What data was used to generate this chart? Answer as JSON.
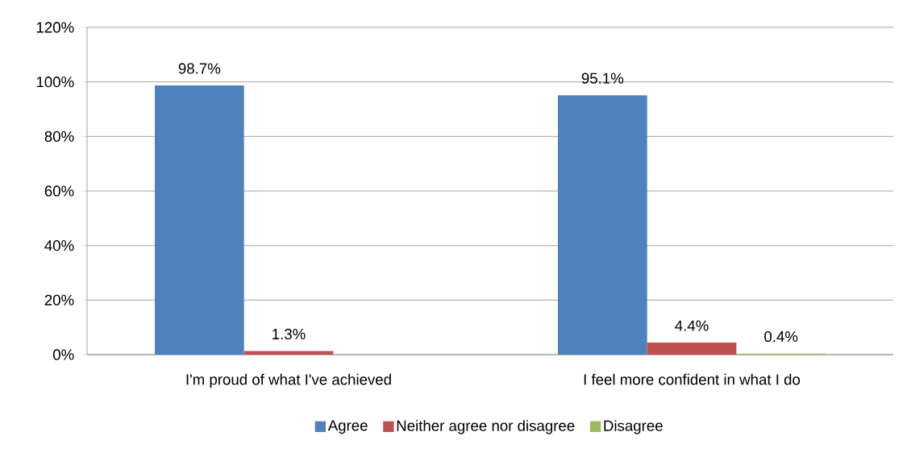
{
  "chart_data": {
    "type": "bar",
    "categories": [
      "I'm proud of what I've achieved",
      "I feel more confident in what I do"
    ],
    "series": [
      {
        "name": "Agree",
        "color": "#4f81bd",
        "values": [
          98.7,
          95.1
        ],
        "value_labels": [
          "98.7%",
          "95.1%"
        ]
      },
      {
        "name": "Neither agree nor disagree",
        "color": "#c0504d",
        "values": [
          1.3,
          4.4
        ],
        "value_labels": [
          "1.3%",
          "4.4%"
        ]
      },
      {
        "name": "Disagree",
        "color": "#9bbb59",
        "values": [
          null,
          0.4
        ],
        "value_labels": [
          null,
          "0.4%"
        ]
      }
    ],
    "ylim": [
      0,
      120
    ],
    "yticks": [
      {
        "value": 0,
        "label": "0%"
      },
      {
        "value": 20,
        "label": "20%"
      },
      {
        "value": 40,
        "label": "40%"
      },
      {
        "value": 60,
        "label": "60%"
      },
      {
        "value": 80,
        "label": "80%"
      },
      {
        "value": 100,
        "label": "100%"
      },
      {
        "value": 120,
        "label": "120%"
      }
    ],
    "grid": "y",
    "legend": "bottom"
  }
}
